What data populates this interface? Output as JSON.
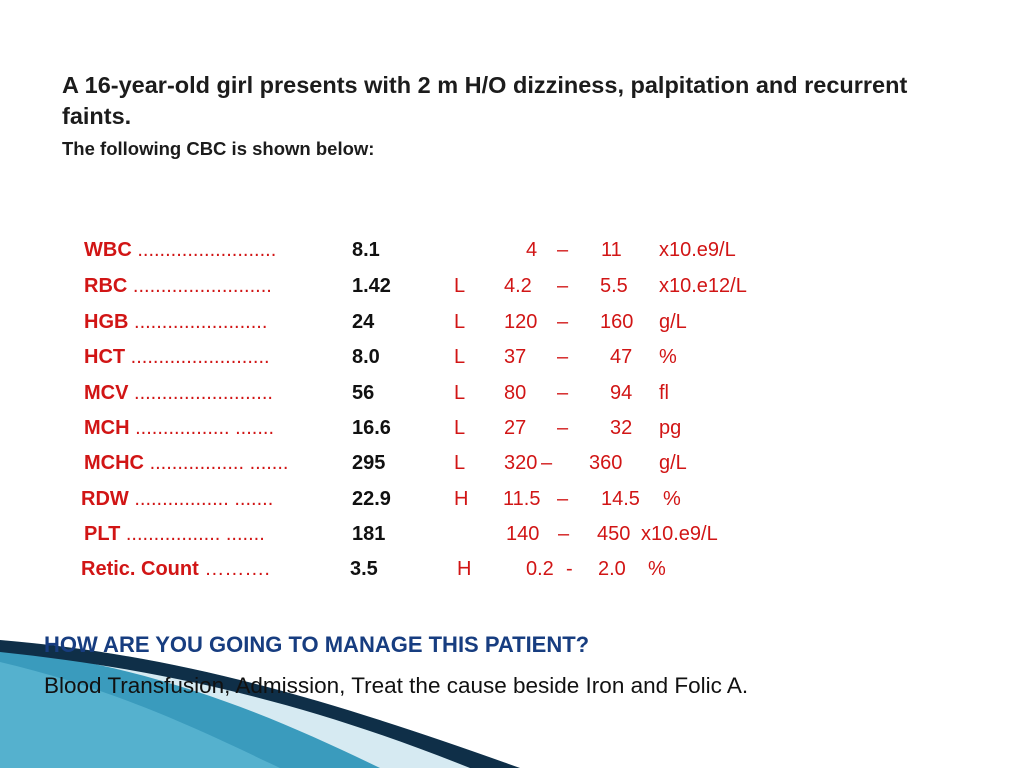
{
  "slide": {
    "title": "A 16-year-old girl presents with 2 m H/O dizziness, palpitation and recurrent faints.",
    "subtitle": "The following CBC is shown below:",
    "cbc_rows": [
      {
        "name": "WBC",
        "dots": ".........................",
        "value": "8.1",
        "flag": "",
        "low": "4",
        "dash": "–",
        "high": "11",
        "unit": "x10.e9/L"
      },
      {
        "name": "RBC",
        "dots": ".........................",
        "value": "1.42",
        "flag": "L",
        "low": "4.2",
        "dash": "–",
        "high": "5.5",
        "unit": "x10.e12/L"
      },
      {
        "name": "HGB",
        "dots": "........................",
        "value": "24",
        "flag": "L",
        "low": "120",
        "dash": "–",
        "high": "160",
        "unit": "g/L"
      },
      {
        "name": "HCT",
        "dots": ".........................",
        "value": "8.0",
        "flag": "L",
        "low": "37",
        "dash": "–",
        "high": "47",
        "unit": "%"
      },
      {
        "name": "MCV",
        "dots": ".........................",
        "value": "56",
        "flag": "L",
        "low": "80",
        "dash": "–",
        "high": "94",
        "unit": "fl"
      },
      {
        "name": "MCH",
        "dots": "................. .......",
        "value": "16.6",
        "flag": "L",
        "low": "27",
        "dash": "–",
        "high": "32",
        "unit": "pg"
      },
      {
        "name": "MCHC",
        "dots": "................. .......",
        "value": "295",
        "flag": "L",
        "low": "320",
        "dash": "–",
        "high": "360",
        "unit": "g/L"
      },
      {
        "name": "RDW",
        "dots": "................. .......",
        "value": "22.9",
        "flag": "H",
        "low": "11.5",
        "dash": "–",
        "high": "14.5",
        "unit": "%"
      },
      {
        "name": "PLT",
        "dots": "................. .......",
        "value": "181",
        "flag": "",
        "low": "140",
        "dash": "–",
        "high": "450",
        "unit": "x10.e9/L"
      },
      {
        "name": "Retic. Count",
        "dots": "……….",
        "value": "3.5",
        "flag": "H",
        "low": "0.2",
        "dash": "-",
        "high": "2.0",
        "unit": "%"
      }
    ],
    "question": "HOW ARE YOU GOING TO MANAGE THIS PATIENT?",
    "answer": "Blood Transfusion, Admission, Treat the cause beside Iron and Folic A."
  },
  "colors": {
    "label_red": "#d11515",
    "question_blue": "#173d80",
    "wave_light": "#cfe6f0",
    "wave_teal": "#2f93b3",
    "wave_dark": "#0f2f48"
  }
}
